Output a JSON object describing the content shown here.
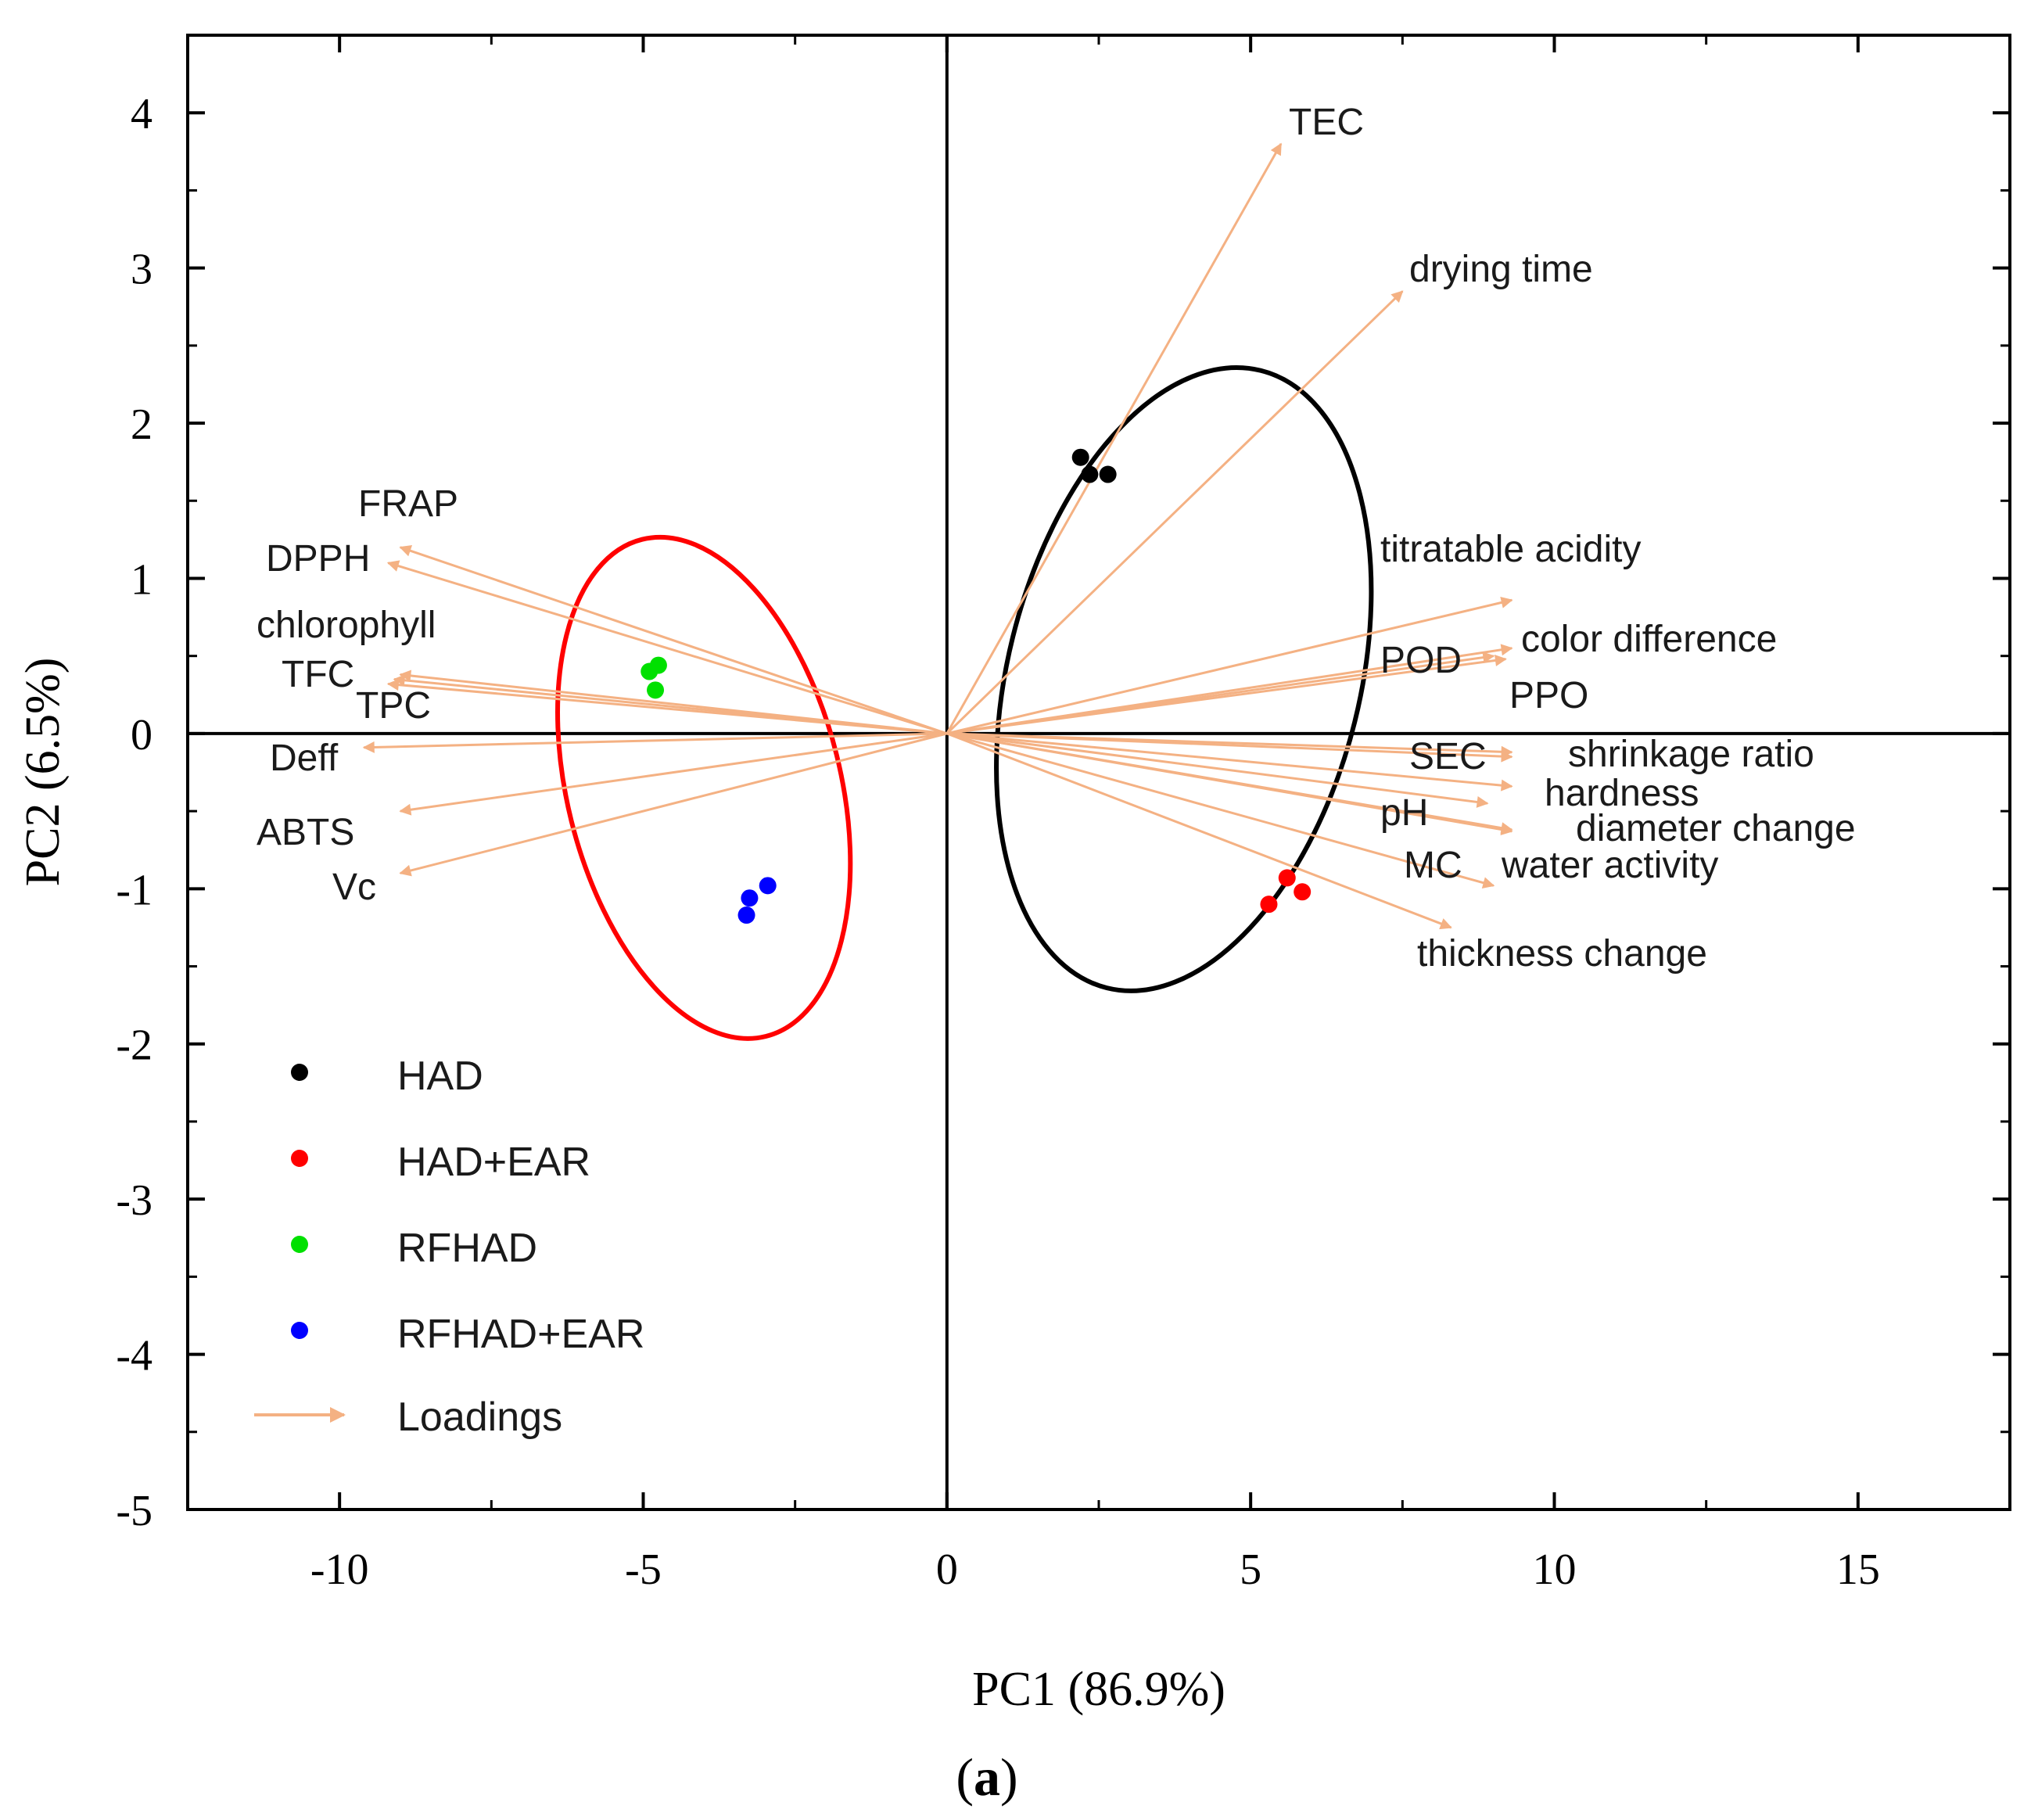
{
  "figure_label": {
    "open": "(",
    "letter": "a",
    "close": ")"
  },
  "chart_data": {
    "type": "scatter",
    "title": "",
    "xlabel": "PC1 (86.9%)",
    "ylabel": "PC2 (6.5%)",
    "xlim": [
      -12.5,
      17.5
    ],
    "ylim": [
      -5,
      4.5
    ],
    "x_ticks": [
      -10,
      -5,
      0,
      5,
      10,
      15
    ],
    "y_ticks": [
      -5,
      -4,
      -3,
      -2,
      -1,
      0,
      1,
      2,
      3,
      4
    ],
    "x_tick_labels": [
      "-10",
      "-5",
      "0",
      "5",
      "10",
      "15"
    ],
    "y_tick_labels": [
      "-5",
      "-4",
      "-3",
      "-2",
      "-1",
      "0",
      "1",
      "2",
      "3",
      "4"
    ],
    "grid": false,
    "zero_lines": true,
    "legend_position": "bottom-left",
    "colors": {
      "HAD": "#000000",
      "HAD+EAR": "#ff0000",
      "RFHAD": "#00e000",
      "RFHAD+EAR": "#0000ff",
      "Loadings": "#f4b183",
      "axes": "#000000"
    },
    "series": [
      {
        "name": "HAD",
        "color": "#000000",
        "points": [
          [
            2.2,
            1.78
          ],
          [
            2.35,
            1.67
          ],
          [
            2.65,
            1.67
          ]
        ]
      },
      {
        "name": "HAD+EAR",
        "color": "#ff0000",
        "points": [
          [
            5.3,
            -1.1
          ],
          [
            5.6,
            -0.93
          ],
          [
            5.85,
            -1.02
          ]
        ]
      },
      {
        "name": "RFHAD",
        "color": "#00e000",
        "points": [
          [
            -4.9,
            0.4
          ],
          [
            -4.75,
            0.44
          ],
          [
            -4.8,
            0.28
          ]
        ]
      },
      {
        "name": "RFHAD+EAR",
        "color": "#0000ff",
        "points": [
          [
            -3.3,
            -1.17
          ],
          [
            -3.25,
            -1.06
          ],
          [
            -2.95,
            -0.98
          ]
        ]
      }
    ],
    "ellipses": [
      {
        "group": "HAD",
        "color": "#000000",
        "center": [
          3.9,
          0.35
        ],
        "rx": 2.9,
        "ry": 2.05,
        "angle_deg": 14
      },
      {
        "group": "RFHAD",
        "color": "#ff0000",
        "center": [
          -4.0,
          -0.35
        ],
        "rx": 2.25,
        "ry": 1.65,
        "angle_deg": -14
      }
    ],
    "loadings_legend": "Loadings",
    "loadings": [
      {
        "label": "TEC",
        "x": 5.5,
        "y": 3.8
      },
      {
        "label": "drying time",
        "x": 7.5,
        "y": 2.85
      },
      {
        "label": "titratable acidity",
        "x": 9.3,
        "y": 0.86
      },
      {
        "label": "color difference",
        "x": 9.3,
        "y": 0.55
      },
      {
        "label": "POD",
        "x": 9.0,
        "y": 0.5
      },
      {
        "label": "PPO",
        "x": 9.2,
        "y": 0.48
      },
      {
        "label": "SEC",
        "x": 9.3,
        "y": -0.12
      },
      {
        "label": "shrinkage ratio",
        "x": 9.3,
        "y": -0.15
      },
      {
        "label": "hardness",
        "x": 9.3,
        "y": -0.34
      },
      {
        "label": "pH",
        "x": 8.9,
        "y": -0.45
      },
      {
        "label": "diameter change",
        "x": 9.3,
        "y": -0.62
      },
      {
        "label": "MC",
        "x": 9.3,
        "y": -0.63
      },
      {
        "label": "water activity",
        "x": 9.0,
        "y": -0.98
      },
      {
        "label": "thickness change",
        "x": 8.3,
        "y": -1.25
      },
      {
        "label": "FRAP",
        "x": -9.0,
        "y": 1.2
      },
      {
        "label": "DPPH",
        "x": -9.2,
        "y": 1.1
      },
      {
        "label": "chlorophyll",
        "x": -9.0,
        "y": 0.38
      },
      {
        "label": "TFC",
        "x": -9.1,
        "y": 0.35
      },
      {
        "label": "TPC",
        "x": -9.2,
        "y": 0.32
      },
      {
        "label": "Deff",
        "x": -9.6,
        "y": -0.09
      },
      {
        "label": "ABTS",
        "x": -9.0,
        "y": -0.5
      },
      {
        "label": "Vc",
        "x": -9.0,
        "y": -0.9
      }
    ]
  }
}
